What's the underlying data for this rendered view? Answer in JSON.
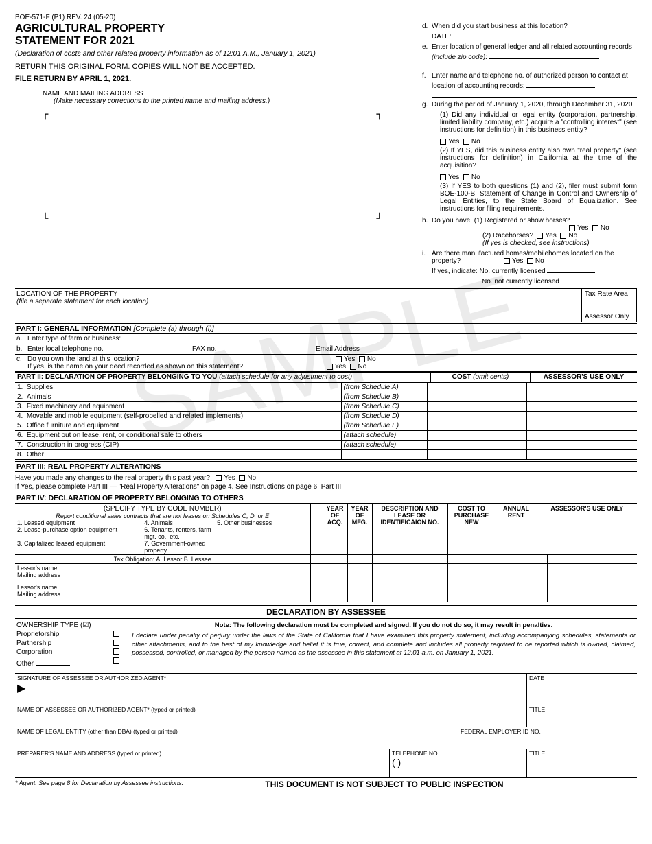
{
  "form_id": "BOE-571-F (P1) REV. 24 (05-20)",
  "title_line1": "AGRICULTURAL PROPERTY",
  "title_line2": "STATEMENT FOR 2021",
  "subtitle": "(Declaration of costs and other related property information as of 12:01 A.M., January 1, 2021)",
  "return_note": "RETURN THIS ORIGINAL FORM. COPIES WILL NOT BE ACCEPTED.",
  "deadline": "FILE RETURN BY APRIL 1, 2021.",
  "addr_label": "NAME AND MAILING ADDRESS",
  "addr_instr": "(Make necessary corrections to the printed name and mailing address.)",
  "d_label": "d.",
  "d_text": "When did you start business at this location?",
  "d_date": "DATE:",
  "e_label": "e.",
  "e_text": "Enter location of general ledger and all related accounting records",
  "e_zip": "(include zip code):",
  "f_label": "f.",
  "f_text": "Enter name and telephone no. of authorized person to contact at location of accounting records:",
  "g_label": "g.",
  "g_text": "During the period of January 1, 2020, through December 31, 2020",
  "g1_text": "(1) Did any individual or legal entity (corporation, partnership, limited liability company, etc.) acquire a \"controlling interest\" (see instructions for definition) in this business entity?",
  "g2_text": "(2) If YES, did this business entity also own \"real property\" (see instructions for definition) in California at the time of the acquisition?",
  "g3_text": "(3) If YES to both questions (1) and (2), filer must submit form BOE-100-B, Statement of Change in Control and Ownership of Legal Entities, to the State Board of Equalization. See instructions for filing requirements.",
  "h_label": "h.",
  "h_text": "Do you have:",
  "h1": "(1) Registered or show horses?",
  "h2": "(2) Racehorses?",
  "h_note": "(If yes is checked, see instructions)",
  "i_label": "i.",
  "i_text": "Are there manufactured homes/mobilehomes located on the property?",
  "i_yes1": "If yes, indicate:",
  "i_lic": "No. currently licensed",
  "i_nolic": "No. not currently licensed",
  "yes": "Yes",
  "no": "No",
  "loc_title": "LOCATION OF THE PROPERTY",
  "loc_instr": "(file a separate statement for each location)",
  "tax_rate": "Tax Rate Area",
  "assessor_only": "Assessor Only",
  "part1_title": "PART I:  GENERAL INFORMATION",
  "part1_instr": "[Complete (a) through (i)]",
  "a": "Enter type of farm or business:",
  "b": "Enter local telephone no.",
  "b_fax": "FAX no.",
  "b_email": "Email Address",
  "c": "Do you own the land at this location?",
  "c2": "If yes, is the name on your deed recorded as shown on this statement?",
  "part2_title": "PART II:  DECLARATION OF PROPERTY BELONGING TO YOU",
  "part2_instr": "(attach schedule for any adjustment to cost)",
  "cost_hdr": "COST",
  "cost_note": "(omit cents)",
  "assr_col": "ASSESSOR'S USE ONLY",
  "p2_rows": [
    {
      "n": "1.",
      "label": "Supplies",
      "sched": "(from Schedule A)"
    },
    {
      "n": "2.",
      "label": "Animals",
      "sched": "(from Schedule B)"
    },
    {
      "n": "3.",
      "label": "Fixed machinery and equipment",
      "sched": "(from Schedule C)"
    },
    {
      "n": "4.",
      "label": "Movable and mobile equipment (self-propelled and related implements)",
      "sched": "(from Schedule D)"
    },
    {
      "n": "5.",
      "label": "Office furniture and equipment",
      "sched": "(from Schedule E)"
    },
    {
      "n": "6.",
      "label": "Equipment out on lease, rent, or conditional sale to others",
      "sched": "(attach schedule)"
    },
    {
      "n": "7.",
      "label": "Construction in progress (CIP)",
      "sched": "(attach schedule)"
    },
    {
      "n": "8.",
      "label": "Other",
      "sched": ""
    }
  ],
  "part3_title": "PART III:  REAL PROPERTY ALTERATIONS",
  "part3_q": "Have you made any changes to the real property this past year?",
  "part3_txt2": "If Yes, please complete Part III — \"Real Property Alterations\" on page 4. See Instructions on page 6, Part III.",
  "part4_title": "PART IV:  DECLARATION OF PROPERTY BELONGING TO OTHERS",
  "part4_spec": "(SPECIFY TYPE BY CODE NUMBER)",
  "part4_report": "Report conditional sales contracts that are not leases on Schedules C, D, or E",
  "p4_types": [
    "1. Leased equipment",
    "4. Animals",
    "5. Other businesses",
    "2. Lease-purchase option equipment",
    "6. Tenants, renters, farm mgt. co., etc.",
    "",
    "3. Capitalized leased equipment",
    "7. Government-owned property",
    ""
  ],
  "tax_oblig": "Tax Obligation:   A.  Lessor        B.  Lessee",
  "lessor_name": "Lessor's name",
  "mailing": "Mailing address",
  "p4_h1": "YEAR OF ACQ.",
  "p4_h2": "YEAR OF MFG.",
  "p4_h3": "DESCRIPTION AND LEASE OR IDENTIFICAION NO.",
  "p4_h4": "COST TO PURCHASE NEW",
  "p4_h5": "ANNUAL RENT",
  "p4_h6": "ASSESSOR'S USE ONLY",
  "decl_title": "DECLARATION BY ASSESSEE",
  "own_title": "OWNERSHIP TYPE (☑)",
  "own1": "Proprietorship",
  "own2": "Partnership",
  "own3": "Corporation",
  "own4": "Other",
  "decl_note": "Note: The following declaration must be completed and signed. If you do not do so, it may result in penalties.",
  "decl_text": "I declare under penalty of perjury under the laws of the State of California that I have examined this property statement, including accompanying schedules, statements or other attachments, and to the best of my knowledge and belief it is true, correct, and complete and includes all property required to be reported which is owned, claimed, possessed, controlled, or managed by the person named as the assessee in this statement at 12:01 a.m. on January 1, 2021.",
  "sig1": "SIGNATURE OF ASSESSEE OR AUTHORIZED AGENT*",
  "date_lbl": "DATE",
  "sig2": "NAME OF ASSESSEE OR AUTHORIZED AGENT* (typed or printed)",
  "title_lbl": "TITLE",
  "sig3": "NAME OF LEGAL ENTITY (other than DBA) (typed or printed)",
  "fein": "FEDERAL EMPLOYER ID NO.",
  "sig4": "PREPARER'S NAME AND ADDRESS (typed or printed)",
  "tel_lbl": "TELEPHONE NO.",
  "tel_paren": "(        )",
  "foot_left": "* Agent: See page 8 for Declaration by Assessee instructions.",
  "foot_center": "THIS DOCUMENT IS NOT SUBJECT TO PUBLIC INSPECTION"
}
